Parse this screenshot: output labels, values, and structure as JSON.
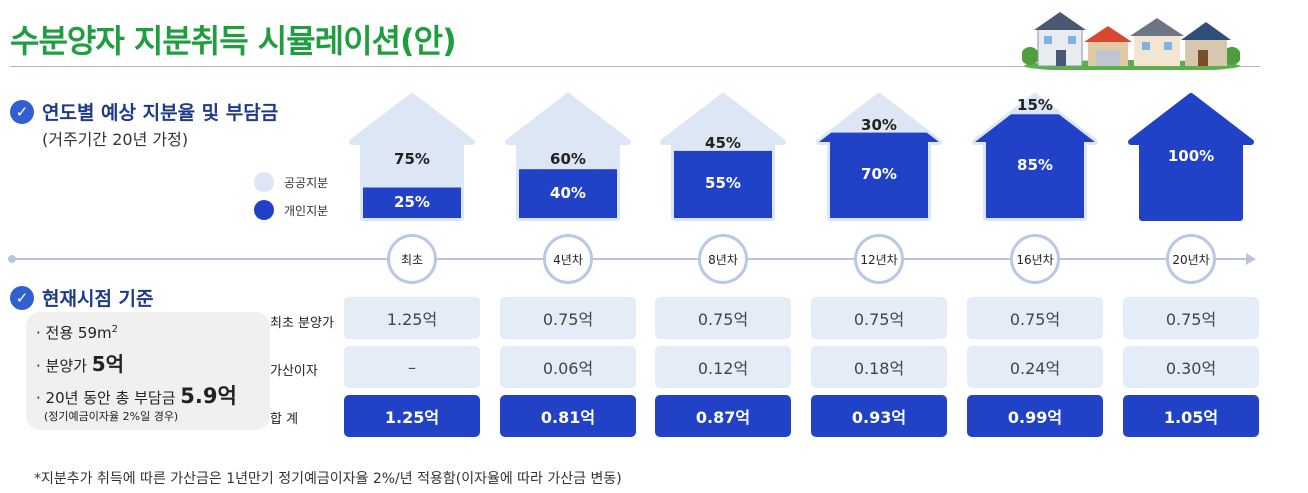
{
  "title": "수분양자 지분취득 시뮬레이션(안)",
  "colors": {
    "title": "#1e9e3e",
    "public": "#dde6f4",
    "private": "#2142c7"
  },
  "section1": {
    "title": "연도별 예상 지분율 및 부담금",
    "subtitle": "(거주기간 20년 가정)"
  },
  "legend": {
    "public": "공공지분",
    "private": "개인지분"
  },
  "section2": {
    "title": "현재시점 기준"
  },
  "info": {
    "area_prefix": "· 전용 59m",
    "area_sup": "2",
    "price_prefix": "· 분양가 ",
    "price_value": "5억",
    "total_prefix": "· 20년 동안 총 부담금 ",
    "total_value": "5.9억",
    "note": "(정기예금이자율 2%일 경우)"
  },
  "row_labels": {
    "initial": "최초 분양가",
    "interest": "가산이자",
    "total": "합 계"
  },
  "stages": [
    {
      "year": "최초",
      "public_pct": "75%",
      "private_pct": "25%",
      "private_frac": 0.25,
      "initial": "1.25억",
      "interest": "–",
      "total": "1.25억"
    },
    {
      "year": "4년차",
      "public_pct": "60%",
      "private_pct": "40%",
      "private_frac": 0.4,
      "initial": "0.75억",
      "interest": "0.06억",
      "total": "0.81억"
    },
    {
      "year": "8년차",
      "public_pct": "45%",
      "private_pct": "55%",
      "private_frac": 0.55,
      "initial": "0.75억",
      "interest": "0.12억",
      "total": "0.87억"
    },
    {
      "year": "12년차",
      "public_pct": "30%",
      "private_pct": "70%",
      "private_frac": 0.7,
      "initial": "0.75억",
      "interest": "0.18억",
      "total": "0.93억"
    },
    {
      "year": "16년차",
      "public_pct": "15%",
      "private_pct": "85%",
      "private_frac": 0.85,
      "initial": "0.75억",
      "interest": "0.24억",
      "total": "0.99억"
    },
    {
      "year": "20년차",
      "public_pct": "",
      "private_pct": "100%",
      "private_frac": 1.0,
      "initial": "0.75억",
      "interest": "0.30억",
      "total": "1.05억"
    }
  ],
  "footnote": "*지분추가 취득에 따른 가산금은 1년만기 정기예금이자율  2%/년 적용함(이자율에 따라 가산금 변동)"
}
